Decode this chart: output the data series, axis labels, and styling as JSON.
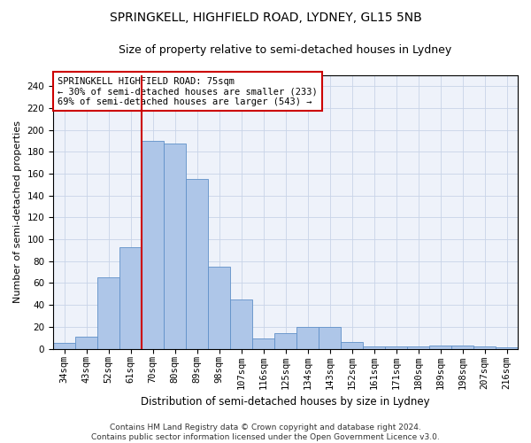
{
  "title": "SPRINGKELL, HIGHFIELD ROAD, LYDNEY, GL15 5NB",
  "subtitle": "Size of property relative to semi-detached houses in Lydney",
  "xlabel": "Distribution of semi-detached houses by size in Lydney",
  "ylabel": "Number of semi-detached properties",
  "categories": [
    "34sqm",
    "43sqm",
    "52sqm",
    "61sqm",
    "70sqm",
    "80sqm",
    "89sqm",
    "98sqm",
    "107sqm",
    "116sqm",
    "125sqm",
    "134sqm",
    "143sqm",
    "152sqm",
    "161sqm",
    "171sqm",
    "180sqm",
    "189sqm",
    "198sqm",
    "207sqm",
    "216sqm"
  ],
  "values": [
    5,
    11,
    65,
    93,
    190,
    188,
    155,
    75,
    45,
    9,
    14,
    20,
    20,
    6,
    2,
    2,
    2,
    3,
    3,
    2,
    1
  ],
  "bar_color": "#aec6e8",
  "bar_edge_color": "#6090c8",
  "vline_x_index": 4,
  "vline_color": "#cc0000",
  "annotation_text": "SPRINGKELL HIGHFIELD ROAD: 75sqm\n← 30% of semi-detached houses are smaller (233)\n69% of semi-detached houses are larger (543) →",
  "annotation_box_color": "#ffffff",
  "annotation_box_edge_color": "#cc0000",
  "footer_text": "Contains HM Land Registry data © Crown copyright and database right 2024.\nContains public sector information licensed under the Open Government Licence v3.0.",
  "bg_color": "#eef2fa",
  "ylim": [
    0,
    250
  ],
  "yticks": [
    0,
    20,
    40,
    60,
    80,
    100,
    120,
    140,
    160,
    180,
    200,
    220,
    240
  ],
  "grid_color": "#c8d4e8",
  "title_fontsize": 10,
  "subtitle_fontsize": 9,
  "xlabel_fontsize": 8.5,
  "ylabel_fontsize": 8,
  "tick_fontsize": 7.5,
  "annotation_fontsize": 7.5,
  "footer_fontsize": 6.5
}
